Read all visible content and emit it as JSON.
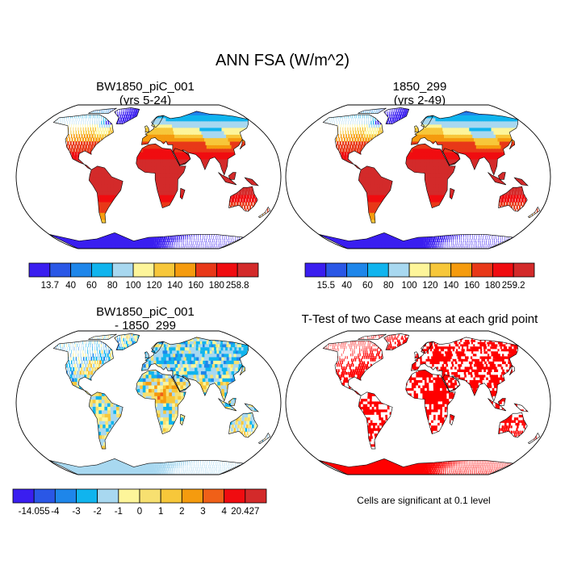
{
  "figure": {
    "title": "ANN FSA (W/m^2)",
    "footnote": "Cells are significant at 0.1 level"
  },
  "chart_data": [
    {
      "type": "heatmap",
      "title_lines": [
        "BW1850_piC_001",
        "(yrs 5-24)"
      ],
      "projection": "robinson",
      "colorbar": {
        "labels": [
          "13.7",
          "40",
          "60",
          "80",
          "100",
          "120",
          "140",
          "160",
          "180",
          "258.8"
        ],
        "colors": [
          "#3a1ef0",
          "#2a57e6",
          "#1e86ea",
          "#10b4ee",
          "#a8d8f0",
          "#fdf59a",
          "#f7c73a",
          "#f59b0e",
          "#e83818",
          "#f00c10",
          "#d32a2a"
        ]
      },
      "field_description": "annual mean absorbed solar (FSA); low over Antarctica/Greenland/high latitudes, high over tropics and subtropics"
    },
    {
      "type": "heatmap",
      "title_lines": [
        "1850_299",
        "(yrs 2-49)"
      ],
      "projection": "robinson",
      "colorbar": {
        "labels": [
          "15.5",
          "40",
          "60",
          "80",
          "100",
          "120",
          "140",
          "160",
          "180",
          "259.2"
        ],
        "colors": [
          "#3a1ef0",
          "#2a57e6",
          "#1e86ea",
          "#10b4ee",
          "#a8d8f0",
          "#fdf59a",
          "#f7c73a",
          "#f59b0e",
          "#e83818",
          "#f00c10",
          "#d32a2a"
        ]
      }
    },
    {
      "type": "heatmap",
      "title_lines": [
        "BW1850_piC_001",
        "- 1850_299"
      ],
      "projection": "robinson",
      "colorbar": {
        "labels": [
          "-14.055",
          "-4",
          "-3",
          "-2",
          "-1",
          "0",
          "1",
          "2",
          "3",
          "4",
          "20.427"
        ],
        "colors": [
          "#3a1ef0",
          "#2a57e6",
          "#1e86ea",
          "#10b4ee",
          "#a8d8f0",
          "#fdf59a",
          "#f7e070",
          "#f7c73a",
          "#f59b0e",
          "#f06018",
          "#f00c10",
          "#d32a2a"
        ]
      }
    },
    {
      "type": "heatmap",
      "title_lines": [
        "T-Test of two Case means at each grid point"
      ],
      "projection": "robinson",
      "significant_color": "#ff0000"
    }
  ]
}
